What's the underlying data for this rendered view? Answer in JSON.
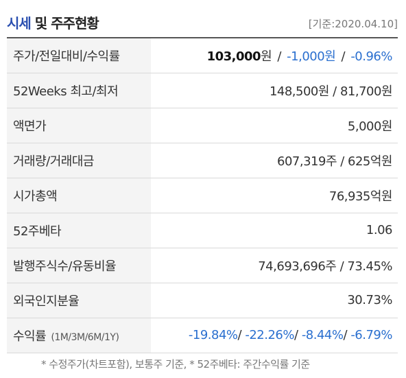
{
  "header": {
    "title_blue": "시세",
    "title_rest": "및 주주현황",
    "base_date": "[기준:2020.04.10]"
  },
  "rows": {
    "price": {
      "label": "주가/전일대비/수익률",
      "price": "103,000",
      "price_unit": "원",
      "change": "-1,000원",
      "rate": "-0.96%",
      "sep": "/"
    },
    "weeks52": {
      "label": "52Weeks 최고/최저",
      "value": "148,500원 / 81,700원"
    },
    "par": {
      "label": "액면가",
      "value": "5,000원"
    },
    "volume": {
      "label": "거래량/거래대금",
      "value": "607,319주 / 625억원"
    },
    "market_cap": {
      "label": "시가총액",
      "value": "76,935억원"
    },
    "beta": {
      "label": "52주베타",
      "value": "1.06"
    },
    "shares": {
      "label": "발행주식수/유동비율",
      "value": "74,693,696주 / 73.45%"
    },
    "foreign": {
      "label": "외국인지분율",
      "value": "30.73%"
    },
    "returns": {
      "label": "수익률",
      "label_sub": "(1M/3M/6M/1Y)",
      "r1m": "-19.84%",
      "r3m": "-22.26%",
      "r6m": "-8.44%",
      "r1y": "-6.79%",
      "sep": "/"
    }
  },
  "footnote": "* 수정주가(차트포함), 보통주 기준, * 52주베타: 주간수익률 기준",
  "colors": {
    "title_blue": "#2a4fb0",
    "negative_blue": "#2a6fcf",
    "label_bg": "#f4f4f4",
    "header_rule": "#555555",
    "row_border": "#d9d9d9"
  }
}
